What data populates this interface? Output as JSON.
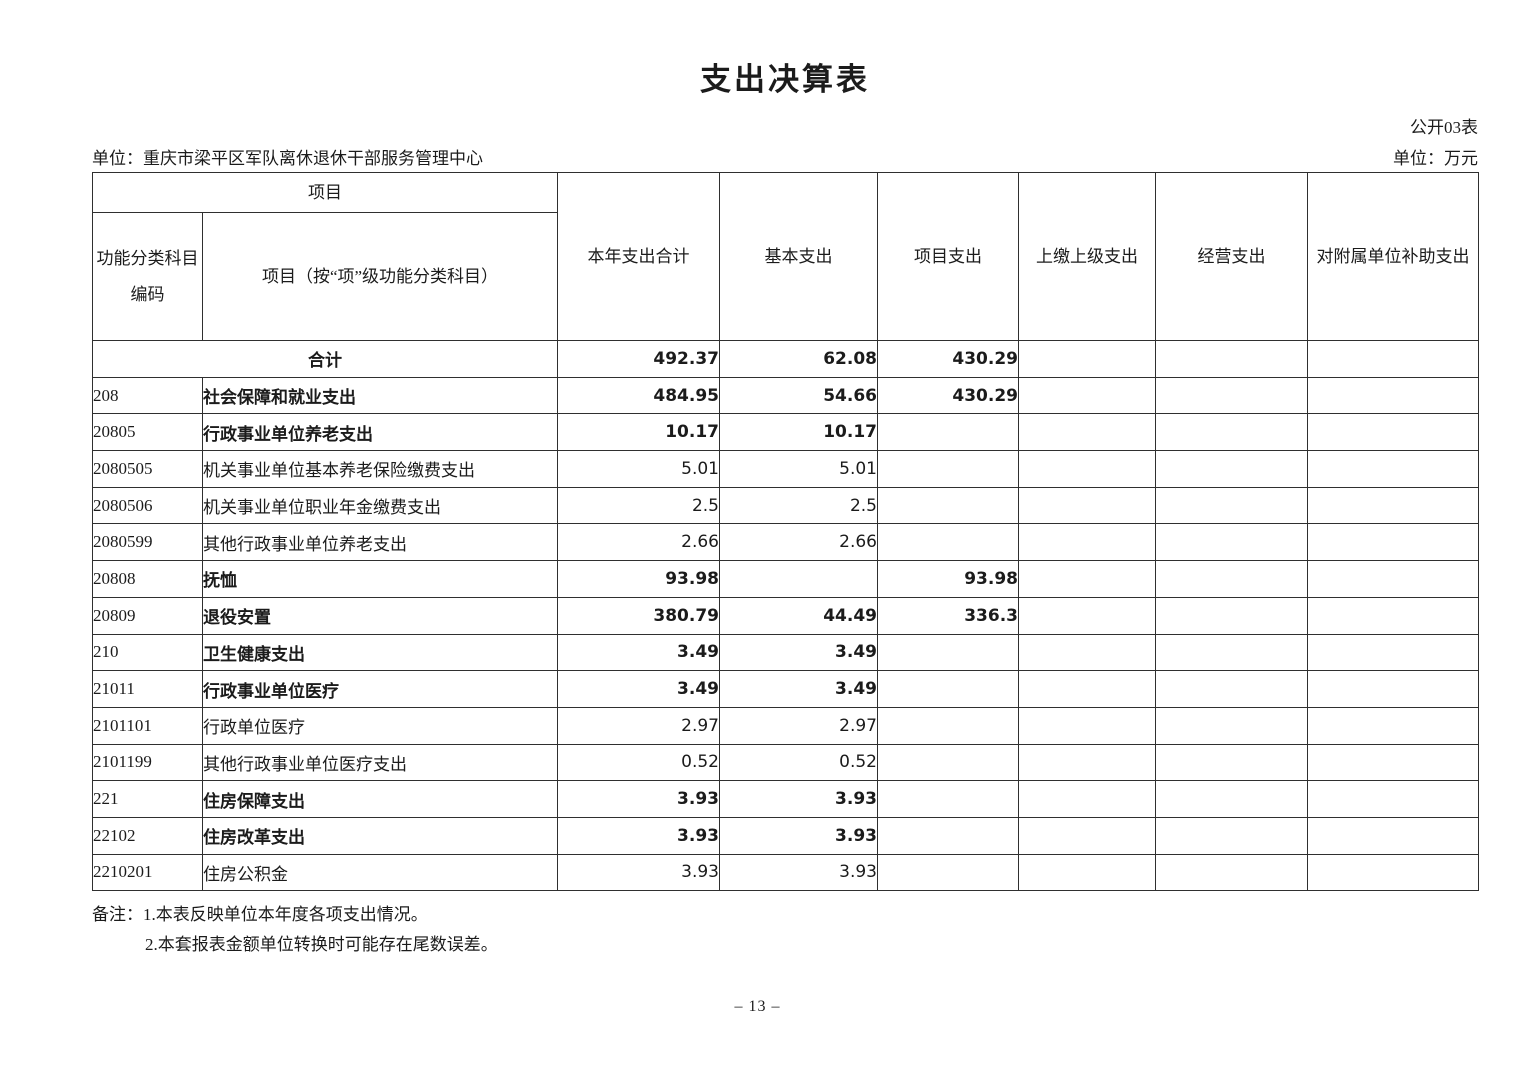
{
  "page": {
    "title": "支出决算表",
    "table_no": "公开03表",
    "unit_label": "单位：重庆市梁平区军队离休退休干部服务管理中心",
    "currency_label": "单位：万元",
    "page_number": "– 13 –"
  },
  "colors": {
    "ink": "#1b1b1b",
    "border": "#2f2f2f",
    "background": "#ffffff"
  },
  "table": {
    "header": {
      "project_group": "项目",
      "col_code": "功能分类科目编码",
      "col_item": "项目（按“项”级功能分类科目）",
      "col_total": "本年支出合计",
      "col_basic": "基本支出",
      "col_project": "项目支出",
      "col_upper": "上缴上级支出",
      "col_operating": "经营支出",
      "col_subsidy": "对附属单位补助支出"
    },
    "rows": [
      {
        "code": "",
        "item": "合计",
        "merged": true,
        "bold": true,
        "total": "492.37",
        "basic": "62.08",
        "project": "430.29",
        "upper": "",
        "operating": "",
        "subsidy": ""
      },
      {
        "code": "208",
        "item": "社会保障和就业支出",
        "merged": false,
        "bold": true,
        "total": "484.95",
        "basic": "54.66",
        "project": "430.29",
        "upper": "",
        "operating": "",
        "subsidy": ""
      },
      {
        "code": "20805",
        "item": "行政事业单位养老支出",
        "merged": false,
        "bold": true,
        "total": "10.17",
        "basic": "10.17",
        "project": "",
        "upper": "",
        "operating": "",
        "subsidy": ""
      },
      {
        "code": "2080505",
        "item": "机关事业单位基本养老保险缴费支出",
        "merged": false,
        "bold": false,
        "total": "5.01",
        "basic": "5.01",
        "project": "",
        "upper": "",
        "operating": "",
        "subsidy": ""
      },
      {
        "code": "2080506",
        "item": "机关事业单位职业年金缴费支出",
        "merged": false,
        "bold": false,
        "total": "2.5",
        "basic": "2.5",
        "project": "",
        "upper": "",
        "operating": "",
        "subsidy": ""
      },
      {
        "code": "2080599",
        "item": "其他行政事业单位养老支出",
        "merged": false,
        "bold": false,
        "total": "2.66",
        "basic": "2.66",
        "project": "",
        "upper": "",
        "operating": "",
        "subsidy": ""
      },
      {
        "code": "20808",
        "item": "抚恤",
        "merged": false,
        "bold": true,
        "total": "93.98",
        "basic": "",
        "project": "93.98",
        "upper": "",
        "operating": "",
        "subsidy": ""
      },
      {
        "code": "20809",
        "item": "退役安置",
        "merged": false,
        "bold": true,
        "total": "380.79",
        "basic": "44.49",
        "project": "336.3",
        "upper": "",
        "operating": "",
        "subsidy": ""
      },
      {
        "code": "210",
        "item": "卫生健康支出",
        "merged": false,
        "bold": true,
        "total": "3.49",
        "basic": "3.49",
        "project": "",
        "upper": "",
        "operating": "",
        "subsidy": ""
      },
      {
        "code": "21011",
        "item": "行政事业单位医疗",
        "merged": false,
        "bold": true,
        "total": "3.49",
        "basic": "3.49",
        "project": "",
        "upper": "",
        "operating": "",
        "subsidy": ""
      },
      {
        "code": "2101101",
        "item": "行政单位医疗",
        "merged": false,
        "bold": false,
        "total": "2.97",
        "basic": "2.97",
        "project": "",
        "upper": "",
        "operating": "",
        "subsidy": ""
      },
      {
        "code": "2101199",
        "item": "其他行政事业单位医疗支出",
        "merged": false,
        "bold": false,
        "total": "0.52",
        "basic": "0.52",
        "project": "",
        "upper": "",
        "operating": "",
        "subsidy": ""
      },
      {
        "code": "221",
        "item": "住房保障支出",
        "merged": false,
        "bold": true,
        "total": "3.93",
        "basic": "3.93",
        "project": "",
        "upper": "",
        "operating": "",
        "subsidy": ""
      },
      {
        "code": "22102",
        "item": "住房改革支出",
        "merged": false,
        "bold": true,
        "total": "3.93",
        "basic": "3.93",
        "project": "",
        "upper": "",
        "operating": "",
        "subsidy": ""
      },
      {
        "code": "2210201",
        "item": "住房公积金",
        "merged": false,
        "bold": false,
        "total": "3.93",
        "basic": "3.93",
        "project": "",
        "upper": "",
        "operating": "",
        "subsidy": ""
      }
    ]
  },
  "notes": {
    "label": "备注：",
    "line1": "1.本表反映单位本年度各项支出情况。",
    "line2": "2.本套报表金额单位转换时可能存在尾数误差。"
  }
}
